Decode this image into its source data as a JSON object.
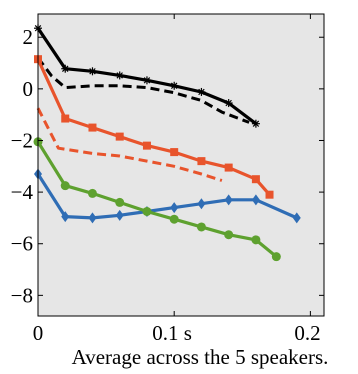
{
  "chart_data": {
    "type": "line",
    "title": "",
    "xlabel": "",
    "ylabel": "",
    "caption": "Average across the 5 speakers.",
    "xlim": [
      0,
      0.21
    ],
    "ylim": [
      -8.8,
      2.9
    ],
    "grid": false,
    "background": "#e6e6e6",
    "x_ticks": [
      {
        "value": 0,
        "label": "0"
      },
      {
        "value": 0.1,
        "label": "0.1 s"
      },
      {
        "value": 0.2,
        "label": "0.2"
      }
    ],
    "y_ticks": [
      {
        "value": 2,
        "label": "2"
      },
      {
        "value": 0,
        "label": "0"
      },
      {
        "value": -2,
        "label": "−2"
      },
      {
        "value": -4,
        "label": "−4"
      },
      {
        "value": -6,
        "label": "−6"
      },
      {
        "value": -8,
        "label": "−8"
      }
    ],
    "series": [
      {
        "color": "#000000",
        "style": "solid",
        "marker": "star",
        "x": [
          0,
          0.02,
          0.04,
          0.06,
          0.08,
          0.1,
          0.12,
          0.14,
          0.16
        ],
        "y": [
          2.35,
          0.78,
          0.68,
          0.52,
          0.33,
          0.12,
          -0.12,
          -0.55,
          -1.35
        ]
      },
      {
        "color": "#000000",
        "style": "dashed",
        "marker": "none",
        "x": [
          0,
          0.01,
          0.02,
          0.04,
          0.06,
          0.08,
          0.1,
          0.12,
          0.135,
          0.155
        ],
        "y": [
          1.2,
          0.5,
          0.05,
          0.12,
          0.12,
          0.05,
          -0.15,
          -0.45,
          -0.9,
          -1.3
        ]
      },
      {
        "color": "#e8542c",
        "style": "solid",
        "marker": "square",
        "x": [
          0,
          0.02,
          0.04,
          0.06,
          0.08,
          0.1,
          0.12,
          0.14,
          0.16,
          0.17
        ],
        "y": [
          1.15,
          -1.15,
          -1.5,
          -1.85,
          -2.2,
          -2.45,
          -2.8,
          -3.05,
          -3.5,
          -4.1
        ]
      },
      {
        "color": "#e8542c",
        "style": "dashed",
        "marker": "none",
        "x": [
          0,
          0.015,
          0.04,
          0.06,
          0.08,
          0.1,
          0.12,
          0.135
        ],
        "y": [
          -0.75,
          -2.3,
          -2.5,
          -2.6,
          -2.8,
          -3.0,
          -3.3,
          -3.55
        ]
      },
      {
        "color": "#2f6db5",
        "style": "solid",
        "marker": "diamond",
        "x": [
          0,
          0.02,
          0.04,
          0.06,
          0.08,
          0.1,
          0.12,
          0.14,
          0.16,
          0.19
        ],
        "y": [
          -3.3,
          -4.95,
          -5.0,
          -4.9,
          -4.75,
          -4.6,
          -4.45,
          -4.3,
          -4.3,
          -5.0
        ]
      },
      {
        "color": "#5ea12f",
        "style": "solid",
        "marker": "circle",
        "x": [
          0,
          0.02,
          0.04,
          0.06,
          0.08,
          0.1,
          0.12,
          0.14,
          0.16,
          0.175
        ],
        "y": [
          -2.05,
          -3.75,
          -4.05,
          -4.4,
          -4.75,
          -5.05,
          -5.35,
          -5.65,
          -5.85,
          -6.5
        ]
      }
    ]
  }
}
